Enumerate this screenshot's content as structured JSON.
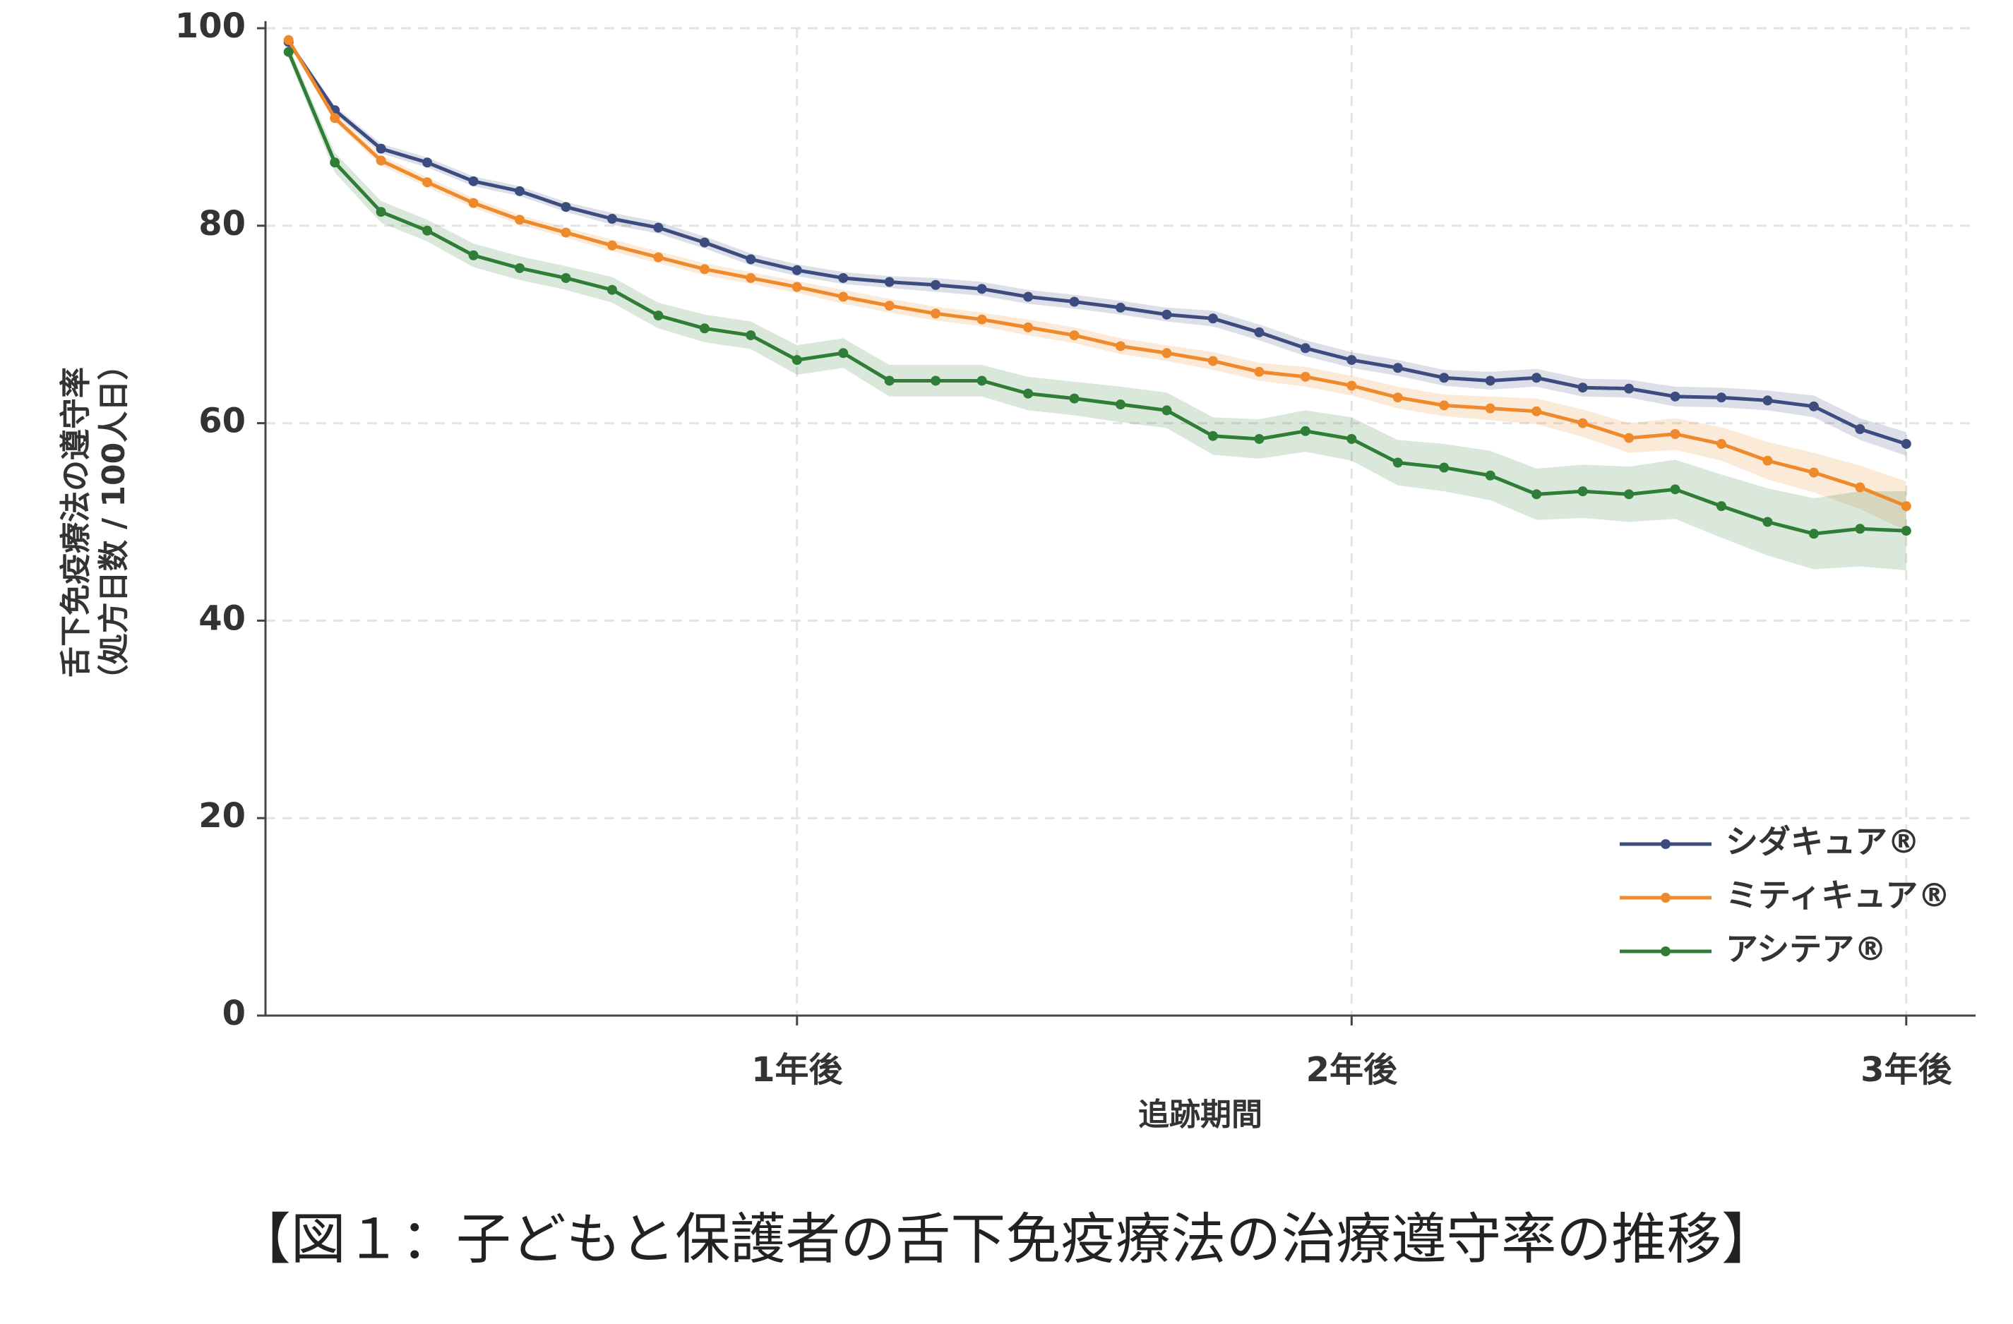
{
  "chart_data": {
    "type": "line",
    "y_label_lines": [
      "舌下免疫療法の遵守率",
      "（処方日数 / 100人日）"
    ],
    "x_label": "追跡期間",
    "caption": "【図１：子どもと保護者の舌下免疫療法の治療遵守率の推移】",
    "x": [
      1,
      2,
      3,
      4,
      5,
      6,
      7,
      8,
      9,
      10,
      11,
      12,
      13,
      14,
      15,
      16,
      17,
      18,
      19,
      20,
      21,
      22,
      23,
      24,
      25,
      26,
      27,
      28,
      29,
      30,
      31,
      32,
      33,
      34,
      35,
      36
    ],
    "xlim": [
      0.5,
      37.5
    ],
    "xticks": [
      {
        "value": 12,
        "label": "1年後"
      },
      {
        "value": 24,
        "label": "2年後"
      },
      {
        "value": 36,
        "label": "3年後"
      }
    ],
    "ylim": [
      0,
      100
    ],
    "yticks": [
      0,
      20,
      40,
      60,
      80,
      100
    ],
    "grid": true,
    "legend": "lower right",
    "series": [
      {
        "name": "シダキュア®",
        "color": "#3d4c7f",
        "values": [
          98.6,
          91.7,
          87.8,
          86.4,
          84.5,
          83.5,
          81.9,
          80.7,
          79.8,
          78.3,
          76.6,
          75.5,
          74.7,
          74.3,
          74.0,
          73.6,
          72.8,
          72.3,
          71.7,
          71.0,
          70.6,
          69.2,
          67.6,
          66.4,
          65.6,
          64.6,
          64.3,
          64.6,
          63.6,
          63.5,
          62.7,
          62.6,
          62.3,
          61.7,
          59.4,
          57.9
        ],
        "errors": [
          0.3,
          0.4,
          0.5,
          0.5,
          0.5,
          0.5,
          0.5,
          0.6,
          0.6,
          0.6,
          0.6,
          0.6,
          0.6,
          0.6,
          0.7,
          0.7,
          0.7,
          0.7,
          0.7,
          0.7,
          0.8,
          0.8,
          0.8,
          0.8,
          0.8,
          0.8,
          0.9,
          0.9,
          0.9,
          0.9,
          1.0,
          1.0,
          1.0,
          1.1,
          1.1,
          1.2
        ]
      },
      {
        "name": "ミティキュア®",
        "color": "#ef8a2c",
        "values": [
          98.8,
          90.9,
          86.6,
          84.4,
          82.3,
          80.6,
          79.3,
          78.0,
          76.8,
          75.6,
          74.7,
          73.8,
          72.8,
          71.9,
          71.1,
          70.5,
          69.7,
          68.9,
          67.8,
          67.1,
          66.3,
          65.2,
          64.7,
          63.8,
          62.6,
          61.8,
          61.5,
          61.2,
          60.0,
          58.5,
          58.9,
          57.9,
          56.2,
          55.0,
          53.5,
          51.6
        ],
        "errors": [
          0.3,
          0.4,
          0.5,
          0.5,
          0.5,
          0.5,
          0.5,
          0.6,
          0.6,
          0.6,
          0.6,
          0.6,
          0.7,
          0.7,
          0.7,
          0.7,
          0.8,
          0.8,
          0.8,
          0.8,
          0.9,
          0.9,
          1.0,
          1.0,
          1.1,
          1.1,
          1.2,
          1.3,
          1.4,
          1.5,
          1.6,
          1.7,
          1.9,
          2.0,
          2.2,
          2.5
        ]
      },
      {
        "name": "アシテア®",
        "color": "#2f7d36",
        "values": [
          97.6,
          86.4,
          81.4,
          79.5,
          77.0,
          75.7,
          74.7,
          73.5,
          70.9,
          69.6,
          68.9,
          66.4,
          67.1,
          64.3,
          64.3,
          64.3,
          63.0,
          62.5,
          61.9,
          61.3,
          58.7,
          58.4,
          59.2,
          58.4,
          56.0,
          55.5,
          54.7,
          52.8,
          53.1,
          52.8,
          53.3,
          51.6,
          50.0,
          48.8,
          49.3,
          49.1
        ],
        "errors": [
          0.6,
          1.0,
          1.1,
          1.1,
          1.2,
          1.2,
          1.2,
          1.3,
          1.3,
          1.4,
          1.4,
          1.5,
          1.5,
          1.6,
          1.6,
          1.6,
          1.7,
          1.7,
          1.8,
          1.8,
          1.9,
          2.0,
          2.1,
          2.2,
          2.3,
          2.4,
          2.5,
          2.6,
          2.7,
          2.8,
          3.0,
          3.2,
          3.4,
          3.6,
          3.8,
          4.0
        ]
      }
    ]
  }
}
